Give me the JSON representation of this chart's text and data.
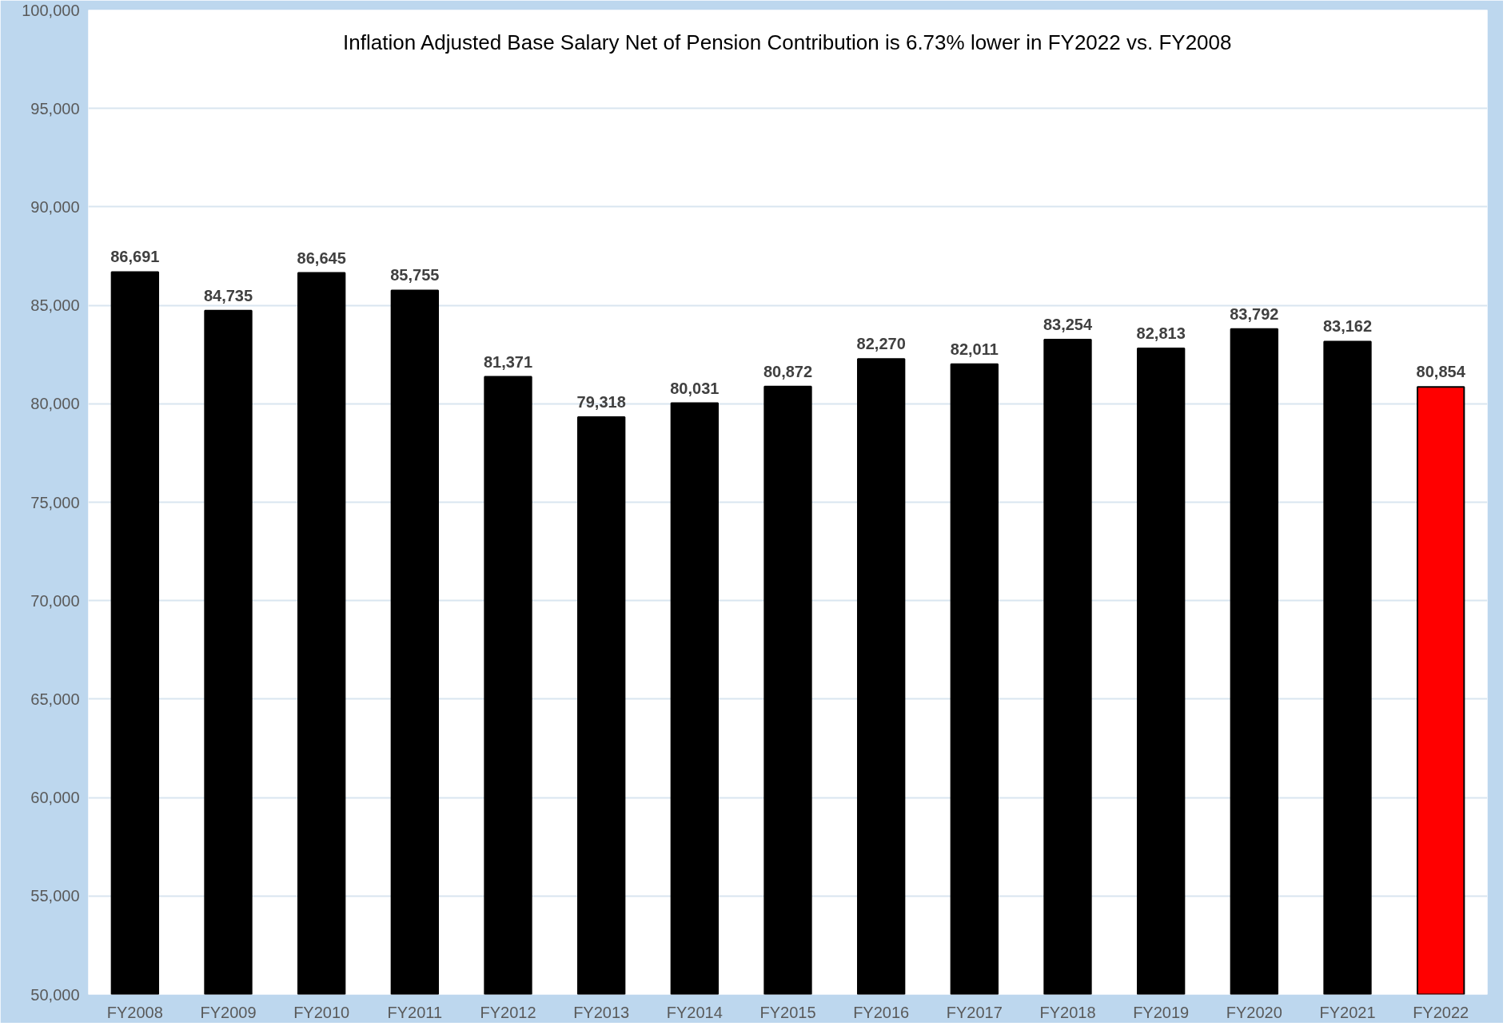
{
  "chart_data": {
    "type": "bar",
    "title": "Inflation Adjusted Base Salary Net of Pension Contribution is 6.73% lower in FY2022 vs. FY2008",
    "categories": [
      "FY2008",
      "FY2009",
      "FY2010",
      "FY2011",
      "FY2012",
      "FY2013",
      "FY2014",
      "FY2015",
      "FY2016",
      "FY2017",
      "FY2018",
      "FY2019",
      "FY2020",
      "FY2021",
      "FY2022"
    ],
    "values": [
      86691,
      84735,
      86645,
      85755,
      81371,
      79318,
      80031,
      80872,
      82270,
      82011,
      83254,
      82813,
      83792,
      83162,
      80854
    ],
    "colors": [
      "#000000",
      "#000000",
      "#000000",
      "#000000",
      "#000000",
      "#000000",
      "#000000",
      "#000000",
      "#000000",
      "#000000",
      "#000000",
      "#000000",
      "#000000",
      "#000000",
      "#ff0000"
    ],
    "ylim": [
      50000,
      100000
    ],
    "yticks": [
      {
        "value": 50000,
        "label": "50,000"
      },
      {
        "value": 55000,
        "label": "55,000"
      },
      {
        "value": 60000,
        "label": "60,000"
      },
      {
        "value": 65000,
        "label": "65,000"
      },
      {
        "value": 70000,
        "label": "70,000"
      },
      {
        "value": 75000,
        "label": "75,000"
      },
      {
        "value": 80000,
        "label": "80,000"
      },
      {
        "value": 85000,
        "label": "85,000"
      },
      {
        "value": 90000,
        "label": "90,000"
      },
      {
        "value": 95000,
        "label": "95,000"
      },
      {
        "value": 100000,
        "label": "100,000"
      }
    ],
    "value_labels": [
      "86,691",
      "84,735",
      "86,645",
      "85,755",
      "81,371",
      "79,318",
      "80,031",
      "80,872",
      "82,270",
      "82,011",
      "83,254",
      "82,813",
      "83,792",
      "83,162",
      "80,854"
    ],
    "grid": "y"
  }
}
